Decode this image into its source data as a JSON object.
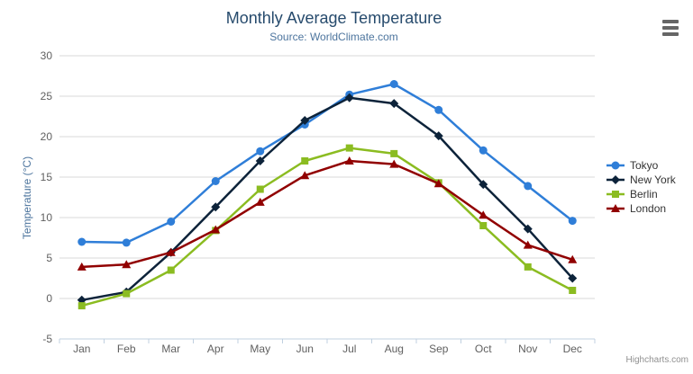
{
  "chart_data": {
    "type": "line",
    "title": "Monthly Average Temperature",
    "subtitle": "Source: WorldClimate.com",
    "ylabel": "Temperature (°C)",
    "ylim": [
      -5,
      30
    ],
    "ytick_step": 5,
    "grid": true,
    "legend_position": "right",
    "categories": [
      "Jan",
      "Feb",
      "Mar",
      "Apr",
      "May",
      "Jun",
      "Jul",
      "Aug",
      "Sep",
      "Oct",
      "Nov",
      "Dec"
    ],
    "series": [
      {
        "name": "Tokyo",
        "color": "#2f7ed8",
        "marker": "circle",
        "values": [
          7.0,
          6.9,
          9.5,
          14.5,
          18.2,
          21.5,
          25.2,
          26.5,
          23.3,
          18.3,
          13.9,
          9.6
        ]
      },
      {
        "name": "New York",
        "color": "#0d233a",
        "marker": "diamond",
        "values": [
          -0.2,
          0.8,
          5.7,
          11.3,
          17.0,
          22.0,
          24.8,
          24.1,
          20.1,
          14.1,
          8.6,
          2.5
        ]
      },
      {
        "name": "Berlin",
        "color": "#8bbc21",
        "marker": "square",
        "values": [
          -0.9,
          0.6,
          3.5,
          8.4,
          13.5,
          17.0,
          18.6,
          17.9,
          14.3,
          9.0,
          3.9,
          1.0
        ]
      },
      {
        "name": "London",
        "color": "#910000",
        "marker": "triangle",
        "values": [
          3.9,
          4.2,
          5.7,
          8.5,
          11.9,
          15.2,
          17.0,
          16.6,
          14.2,
          10.3,
          6.6,
          4.8
        ]
      }
    ],
    "credits": "Highcharts.com"
  },
  "icons": {
    "context_menu": "hamburger-icon"
  },
  "theme": {
    "title_color": "#274b6d",
    "subtitle_color": "#4d759e",
    "axis_label_color": "#606060",
    "axis_title_color": "#4d759e",
    "grid_color": "#d8d8d8",
    "axis_line_color": "#c0d0e0",
    "legend_text_color": "#333333",
    "credits_color": "#909090"
  }
}
